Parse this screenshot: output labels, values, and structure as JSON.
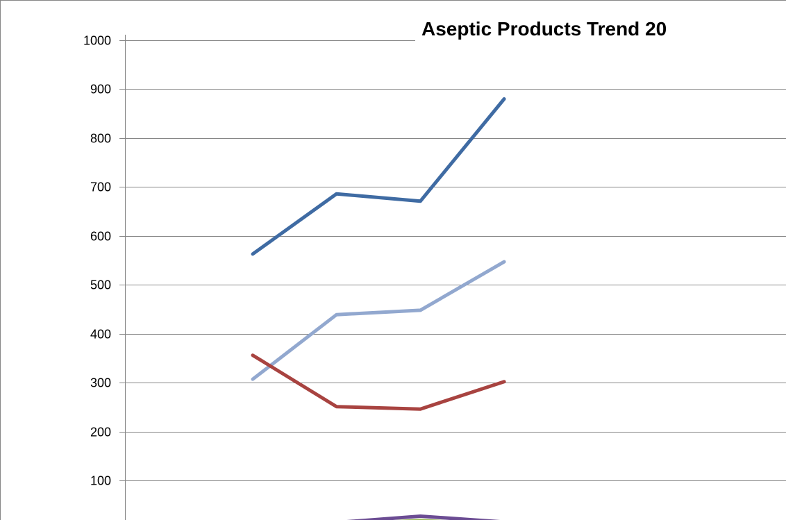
{
  "chart_data": {
    "type": "line",
    "title": "Aseptic Products Trend 20",
    "xlabel": "",
    "ylabel": "",
    "ylim": [
      0,
      1000
    ],
    "yticks": [
      100,
      200,
      300,
      400,
      500,
      600,
      700,
      800,
      900,
      1000
    ],
    "grid": true,
    "x": [
      1,
      2,
      3,
      4
    ],
    "series": [
      {
        "color": "#3F6BA3",
        "values": [
          563,
          686,
          671,
          880
        ]
      },
      {
        "color": "#92A8CF",
        "values": [
          307,
          439,
          448,
          547
        ]
      },
      {
        "color": "#A84340",
        "values": [
          356,
          251,
          246,
          302
        ]
      },
      {
        "color": "#6B4C93",
        "values": [
          0,
          14,
          27,
          15
        ]
      },
      {
        "color": "#9BBB59",
        "values": [
          0,
          10,
          18,
          10
        ]
      }
    ]
  }
}
